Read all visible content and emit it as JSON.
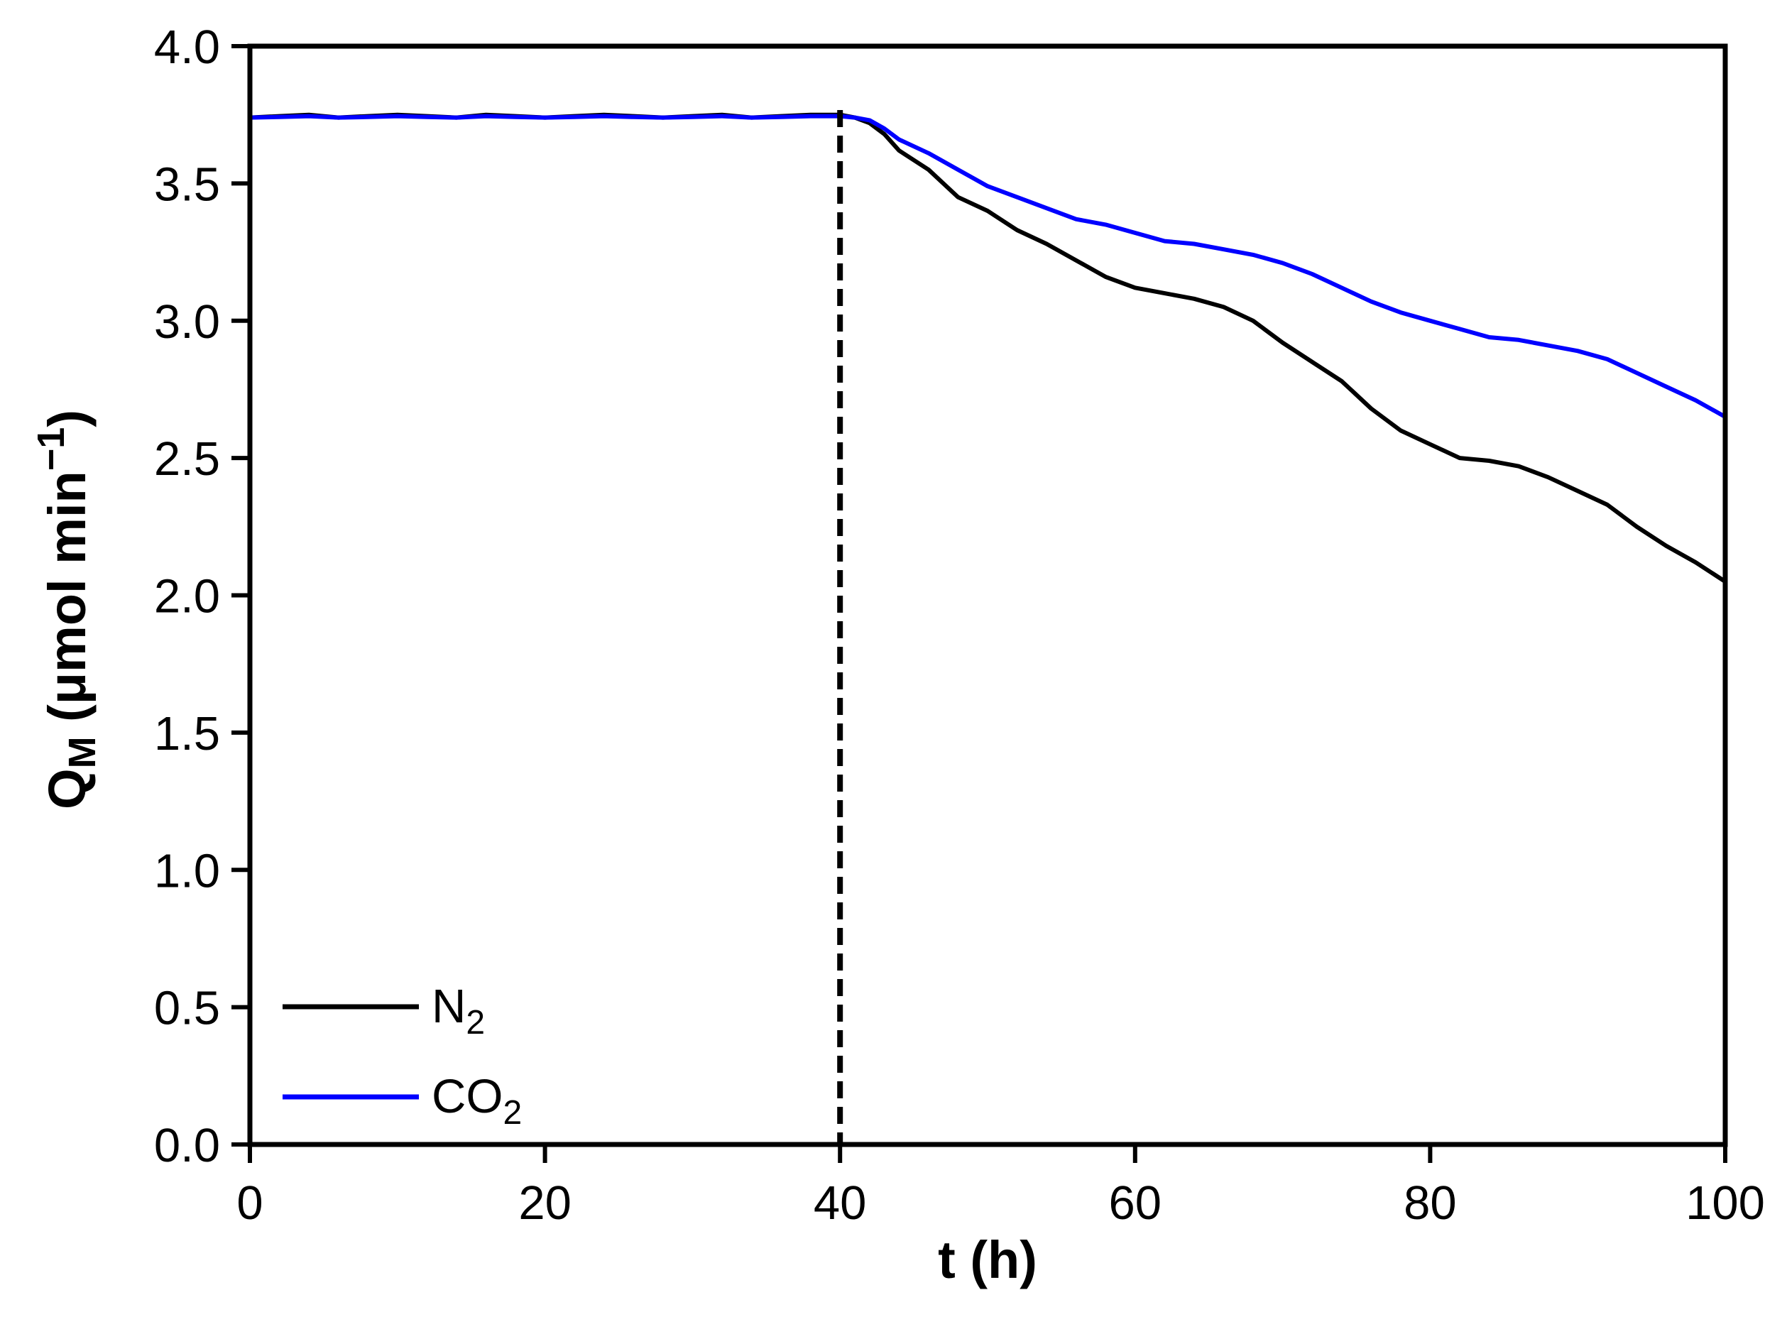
{
  "chart_data": {
    "type": "line",
    "xlabel": "t (h)",
    "ylabel": "QM (μmol min−1)",
    "ylabel_parts": {
      "main": "Q",
      "sub": "M",
      "mid": " (μmol min",
      "sup": "−1",
      "end": ")"
    },
    "xlim": [
      0,
      100
    ],
    "ylim": [
      0,
      4.0
    ],
    "xticks": [
      0,
      20,
      40,
      60,
      80,
      100
    ],
    "xtick_labels": [
      "0",
      "20",
      "40",
      "60",
      "80",
      "100"
    ],
    "yticks": [
      0,
      0.5,
      1.0,
      1.5,
      2.0,
      2.5,
      3.0,
      3.5,
      4.0
    ],
    "ytick_labels": [
      "0.0",
      "0.5",
      "1.0",
      "1.5",
      "2.0",
      "2.5",
      "3.0",
      "3.5",
      "4.0"
    ],
    "grid": false,
    "legend_position": "bottom-left",
    "vertical_marker": {
      "x": 40,
      "style": "dashed"
    },
    "series": [
      {
        "name": "N2",
        "label_main": "N",
        "label_sub": "2",
        "color": "#000000",
        "x": [
          0,
          2,
          4,
          6,
          8,
          10,
          12,
          14,
          16,
          18,
          20,
          22,
          24,
          26,
          28,
          30,
          32,
          34,
          36,
          38,
          40,
          41,
          42,
          43,
          44,
          46,
          48,
          50,
          52,
          54,
          56,
          58,
          60,
          62,
          64,
          66,
          68,
          70,
          72,
          74,
          76,
          78,
          80,
          82,
          84,
          86,
          88,
          90,
          92,
          94,
          96,
          98,
          100
        ],
        "y": [
          3.74,
          3.745,
          3.75,
          3.74,
          3.745,
          3.75,
          3.745,
          3.74,
          3.75,
          3.745,
          3.74,
          3.745,
          3.75,
          3.745,
          3.74,
          3.745,
          3.75,
          3.74,
          3.745,
          3.75,
          3.75,
          3.74,
          3.72,
          3.68,
          3.62,
          3.55,
          3.45,
          3.4,
          3.33,
          3.28,
          3.22,
          3.16,
          3.12,
          3.1,
          3.08,
          3.05,
          3.0,
          2.92,
          2.85,
          2.78,
          2.68,
          2.6,
          2.55,
          2.5,
          2.49,
          2.47,
          2.43,
          2.38,
          2.33,
          2.25,
          2.18,
          2.12,
          2.05
        ]
      },
      {
        "name": "CO2",
        "label_main": "CO",
        "label_sub": "2",
        "color": "#0000ff",
        "x": [
          0,
          2,
          4,
          6,
          8,
          10,
          12,
          14,
          16,
          18,
          20,
          22,
          24,
          26,
          28,
          30,
          32,
          34,
          36,
          38,
          40,
          41,
          42,
          43,
          44,
          46,
          48,
          50,
          52,
          54,
          56,
          58,
          60,
          62,
          64,
          66,
          68,
          70,
          72,
          74,
          76,
          78,
          80,
          82,
          84,
          86,
          88,
          90,
          92,
          94,
          96,
          98,
          100
        ],
        "y": [
          3.74,
          3.742,
          3.745,
          3.74,
          3.742,
          3.745,
          3.742,
          3.74,
          3.745,
          3.742,
          3.74,
          3.742,
          3.745,
          3.742,
          3.74,
          3.742,
          3.745,
          3.74,
          3.742,
          3.745,
          3.745,
          3.74,
          3.73,
          3.7,
          3.66,
          3.61,
          3.55,
          3.49,
          3.45,
          3.41,
          3.37,
          3.35,
          3.32,
          3.29,
          3.28,
          3.26,
          3.24,
          3.21,
          3.17,
          3.12,
          3.07,
          3.03,
          3.0,
          2.97,
          2.94,
          2.93,
          2.91,
          2.89,
          2.86,
          2.81,
          2.76,
          2.71,
          2.65
        ]
      }
    ]
  }
}
